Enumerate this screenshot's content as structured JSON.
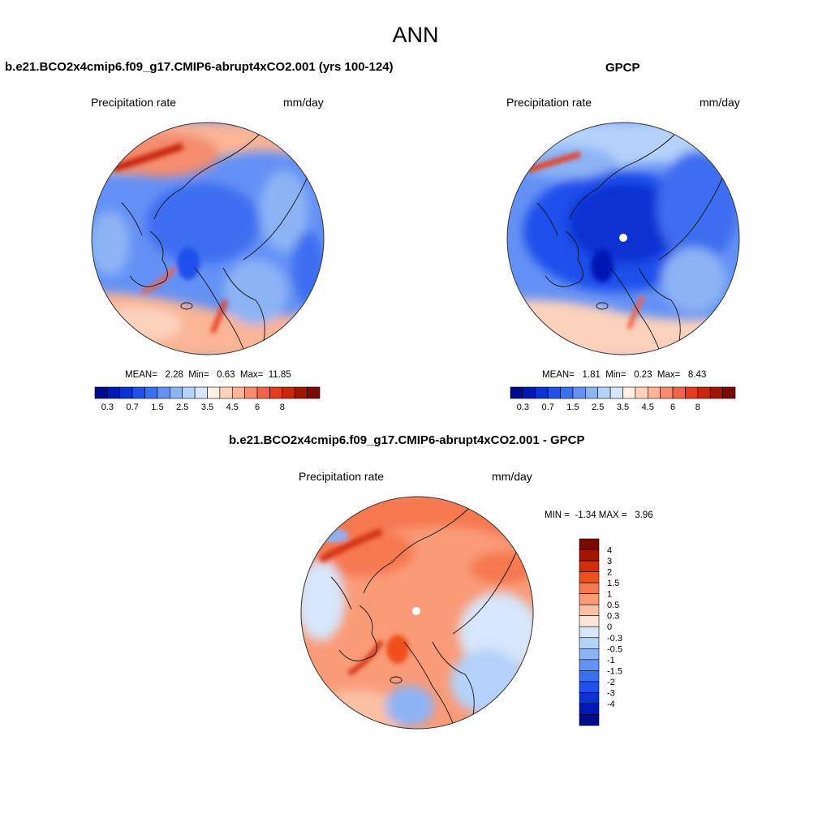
{
  "title": "ANN",
  "panels": [
    {
      "title": "b.e21.BCO2x4cmip6.f09_g17.CMIP6-abrupt4xCO2.001 (yrs 100-124)",
      "variable": "Precipitation rate",
      "units": "mm/day",
      "stats": "MEAN=   2.28  Min=   0.63  Max=  11.85"
    },
    {
      "title": "GPCP",
      "variable": "Precipitation rate",
      "units": "mm/day",
      "stats": "MEAN=   1.81  Min=   0.23  Max=   8.43"
    },
    {
      "title": "b.e21.BCO2x4cmip6.f09_g17.CMIP6-abrupt4xCO2.001 - GPCP",
      "variable": "Precipitation rate",
      "units": "mm/day",
      "stats": "MIN =  -1.34 MAX =   3.96"
    }
  ],
  "abs_colorbar": {
    "colors": [
      "#000a8c",
      "#0019b4",
      "#0a32d2",
      "#1e50eb",
      "#3c6ef0",
      "#6491f5",
      "#8cb4f5",
      "#b4d2fa",
      "#d7e6fa",
      "#fff0e6",
      "#fcd2bc",
      "#fab496",
      "#f58c6e",
      "#f06446",
      "#e63c1e",
      "#c8280a",
      "#a01400",
      "#780a00"
    ],
    "tick_labels": [
      "0.3",
      "0.7",
      "1.5",
      "2.5",
      "3.5",
      "4.5",
      "6",
      "8"
    ]
  },
  "diff_colorbar": {
    "colors": [
      "#780a00",
      "#a01400",
      "#d22d0a",
      "#f0501e",
      "#f57850",
      "#fa9b78",
      "#fcc0a5",
      "#fde6d8",
      "#d7e6fa",
      "#b4d2fa",
      "#8cb4f5",
      "#6491f5",
      "#3c6ef0",
      "#1e50eb",
      "#0a32d2",
      "#0019b4",
      "#000a8c"
    ],
    "labels": [
      "4",
      "3",
      "2",
      "1.5",
      "1",
      "0.5",
      "0.3",
      "0",
      "-0.3",
      "-0.5",
      "-1",
      "-1.5",
      "-2",
      "-3",
      "-4"
    ]
  }
}
